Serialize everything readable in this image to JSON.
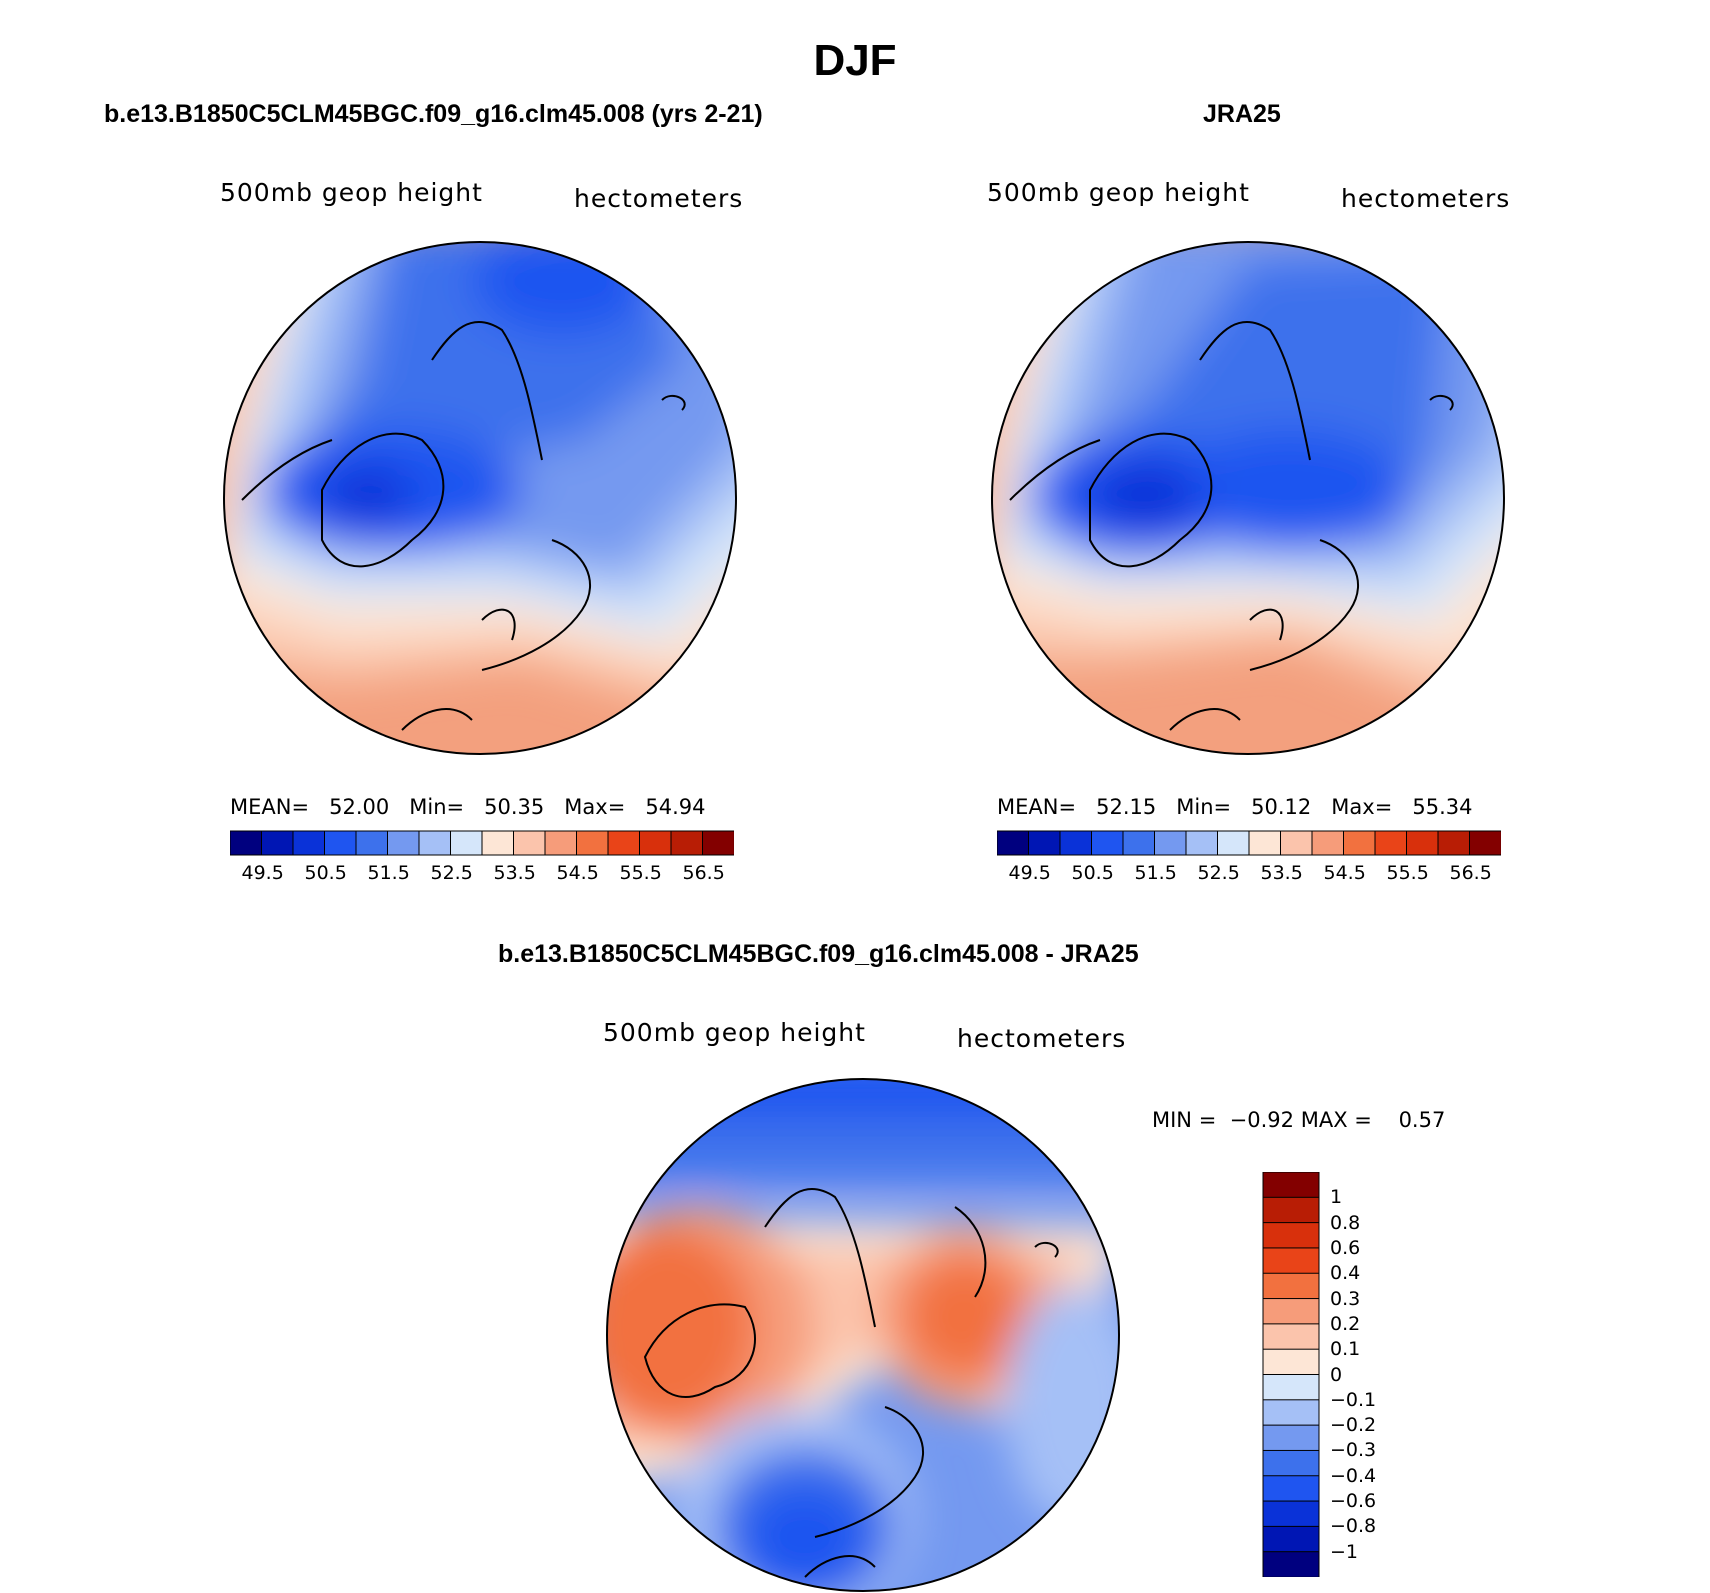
{
  "season": "DJF",
  "panels": [
    {
      "title": "b.e13.B1850C5CLM45BGC.f09_g16.clm45.008 (yrs 2-21)",
      "field": "500mb geop height",
      "units": "hectometers",
      "stats": {
        "mean_label": "MEAN=",
        "mean": "52.00",
        "min_label": "Min=",
        "min": "50.35",
        "max_label": "Max=",
        "max": "54.94"
      }
    },
    {
      "title": "JRA25",
      "field": "500mb geop height",
      "units": "hectometers",
      "stats": {
        "mean_label": "MEAN=",
        "mean": "52.15",
        "min_label": "Min=",
        "min": "50.12",
        "max_label": "Max=",
        "max": "55.34"
      }
    }
  ],
  "abs_colorbar": {
    "labels": [
      "49.5",
      "50.5",
      "51.5",
      "52.5",
      "53.5",
      "54.5",
      "55.5",
      "56.5"
    ],
    "colors": [
      "#00007f",
      "#0016b4",
      "#0a32d8",
      "#1f55f0",
      "#3d71ec",
      "#7499f0",
      "#a5c0f6",
      "#d5e6fa",
      "#fde6d6",
      "#fbc4ac",
      "#f69c7a",
      "#f2713f",
      "#e94418",
      "#d8300c",
      "#b81d05",
      "#830000"
    ]
  },
  "diff_panel": {
    "title": "b.e13.B1850C5CLM45BGC.f09_g16.clm45.008 - JRA25",
    "field": "500mb geop height",
    "units": "hectometers",
    "stats": {
      "min_label": "MIN =",
      "min": "−0.92",
      "max_label": "MAX =",
      "max": "0.57"
    }
  },
  "diff_colorbar": {
    "labels": [
      "1",
      "0.8",
      "0.6",
      "0.4",
      "0.3",
      "0.2",
      "0.1",
      "0",
      "−0.1",
      "−0.2",
      "−0.3",
      "−0.4",
      "−0.6",
      "−0.8",
      "−1"
    ],
    "colors": [
      "#830000",
      "#b81d05",
      "#d8300c",
      "#e94418",
      "#f2713f",
      "#f69c7a",
      "#fbc4ac",
      "#fde6d6",
      "#d5e6fa",
      "#a5c0f6",
      "#7499f0",
      "#3d71ec",
      "#1f55f0",
      "#0a32d8",
      "#0016b4",
      "#00007f"
    ]
  }
}
